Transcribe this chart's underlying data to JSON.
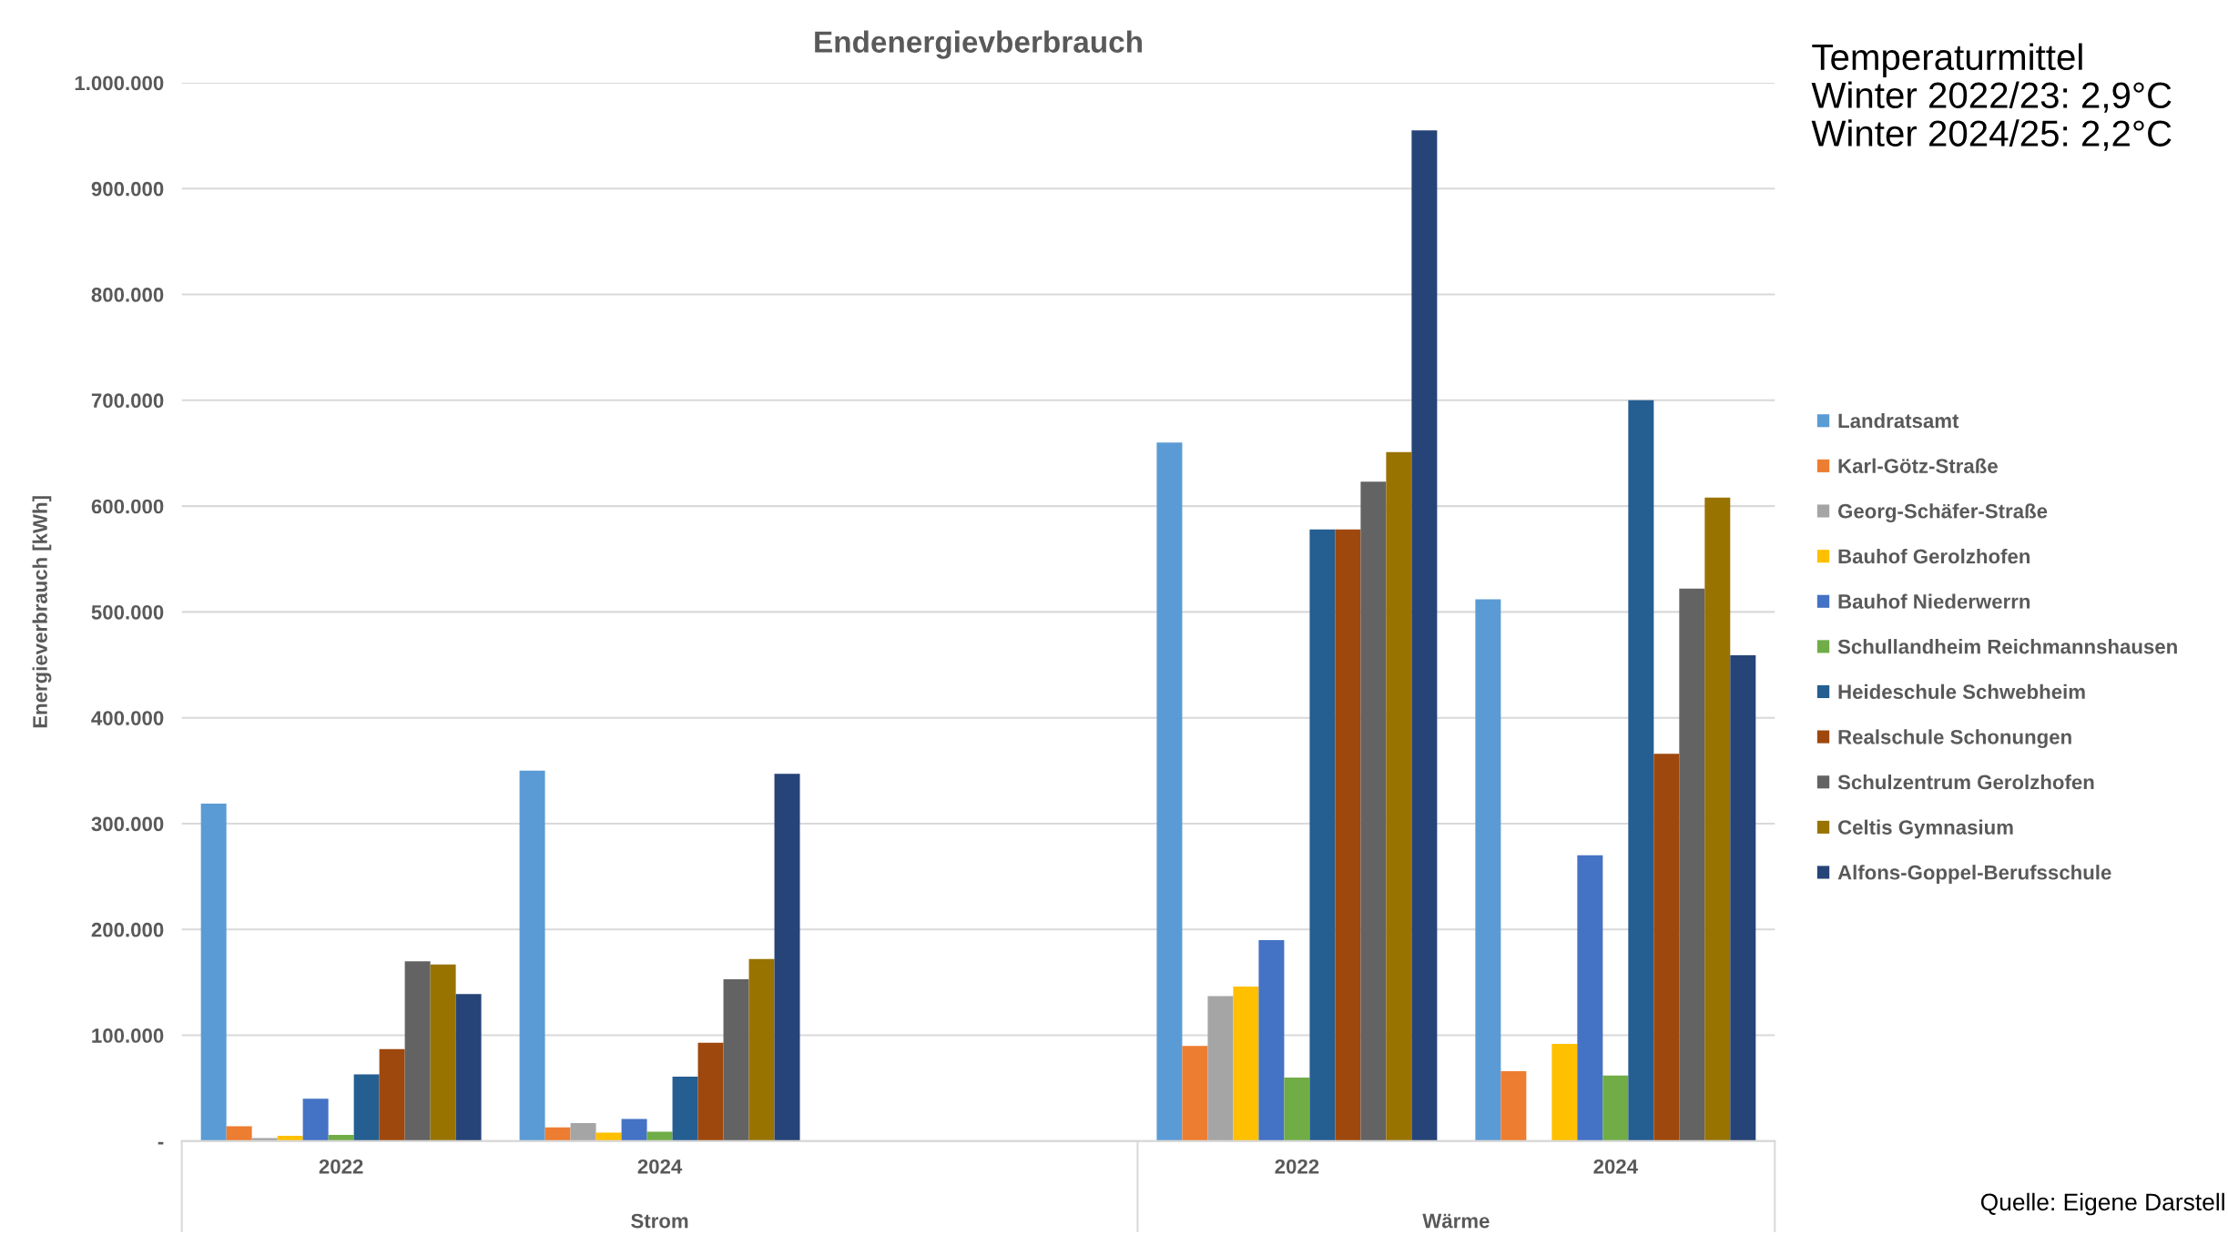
{
  "chart_data": {
    "type": "bar",
    "title": "Endenergievberbrauch",
    "ylabel": "Energieverbrauch [kWh]",
    "categories": [
      "2022",
      "2024",
      null,
      "2022",
      "2024"
    ],
    "series": [
      {
        "name": "Landratsamt",
        "color": "#5b9bd5",
        "values": [
          319000,
          350000,
          null,
          660000,
          512000
        ]
      },
      {
        "name": "Karl-Götz-Straße",
        "color": "#ed7d31",
        "values": [
          14000,
          13000,
          null,
          90000,
          66000
        ]
      },
      {
        "name": "Georg-Schäfer-Straße",
        "color": "#a5a5a5",
        "values": [
          3000,
          17000,
          null,
          137000,
          null
        ]
      },
      {
        "name": "Bauhof Gerolzhofen",
        "color": "#ffc000",
        "values": [
          5000,
          8000,
          null,
          146000,
          92000
        ]
      },
      {
        "name": "Bauhof Niederwerrn",
        "color": "#4472c4",
        "values": [
          40000,
          21000,
          null,
          190000,
          270000
        ]
      },
      {
        "name": "Schullandheim Reichmannshausen",
        "color": "#70ad47",
        "values": [
          6000,
          9000,
          null,
          60000,
          62000
        ]
      },
      {
        "name": "Heideschule Schwebheim",
        "color": "#255e91",
        "values": [
          63000,
          61000,
          null,
          578000,
          700000
        ]
      },
      {
        "name": "Realschule Schonungen",
        "color": "#9e480e",
        "values": [
          87000,
          93000,
          null,
          578000,
          366000
        ]
      },
      {
        "name": "Schulzentrum Gerolzhofen",
        "color": "#636363",
        "values": [
          170000,
          153000,
          null,
          623000,
          522000
        ]
      },
      {
        "name": "Celtis Gymnasium",
        "color": "#997300",
        "values": [
          167000,
          172000,
          null,
          651000,
          608000
        ]
      },
      {
        "name": "Alfons-Goppel-Berufsschule",
        "color": "#264478",
        "values": [
          139000,
          347000,
          null,
          955000,
          459000
        ]
      }
    ],
    "ylim": [
      0,
      1000000
    ],
    "yticks": [
      {
        "value": 0,
        "label": "-"
      },
      {
        "value": 100000,
        "label": "100.000"
      },
      {
        "value": 200000,
        "label": "200.000"
      },
      {
        "value": 300000,
        "label": "300.000"
      },
      {
        "value": 400000,
        "label": "400.000"
      },
      {
        "value": 500000,
        "label": "500.000"
      },
      {
        "value": 600000,
        "label": "600.000"
      },
      {
        "value": 700000,
        "label": "700.000"
      },
      {
        "value": 800000,
        "label": "800.000"
      },
      {
        "value": 900000,
        "label": "900.000"
      },
      {
        "value": 1000000,
        "label": "1.000.000"
      }
    ],
    "grid": "y",
    "legend": "right",
    "annotations": [
      "Temperaturmittel\nWinter 2022/23: 2,9°C\nWinter 2024/25: 2,2°C",
      "Quelle: Eigene Darstell",
      "Strom",
      "Wärme"
    ]
  }
}
